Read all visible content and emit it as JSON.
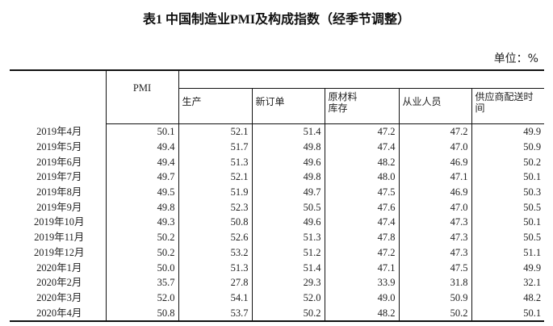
{
  "title": "表1 中国制造业PMI及构成指数（经季节调整）",
  "unit": "单位：%",
  "headers": {
    "pmi": "PMI",
    "cols": [
      "生产",
      "新订单",
      "原材料库存",
      "从业人员",
      "供应商配送时间"
    ],
    "col_lines": [
      [
        "生产"
      ],
      [
        "新订单"
      ],
      [
        "原材料",
        "库存"
      ],
      [
        "从业人员"
      ],
      [
        "供应商配送时",
        "间"
      ]
    ]
  },
  "rows": [
    {
      "month": "2019年4月",
      "values": [
        "50.1",
        "52.1",
        "51.4",
        "47.2",
        "47.2",
        "49.9"
      ]
    },
    {
      "month": "2019年5月",
      "values": [
        "49.4",
        "51.7",
        "49.8",
        "47.4",
        "47.0",
        "50.9"
      ]
    },
    {
      "month": "2019年6月",
      "values": [
        "49.4",
        "51.3",
        "49.6",
        "48.2",
        "46.9",
        "50.2"
      ]
    },
    {
      "month": "2019年7月",
      "values": [
        "49.7",
        "52.1",
        "49.8",
        "48.0",
        "47.1",
        "50.1"
      ]
    },
    {
      "month": "2019年8月",
      "values": [
        "49.5",
        "51.9",
        "49.7",
        "47.5",
        "46.9",
        "50.3"
      ]
    },
    {
      "month": "2019年9月",
      "values": [
        "49.8",
        "52.3",
        "50.5",
        "47.6",
        "47.0",
        "50.5"
      ]
    },
    {
      "month": "2019年10月",
      "values": [
        "49.3",
        "50.8",
        "49.6",
        "47.4",
        "47.3",
        "50.1"
      ]
    },
    {
      "month": "2019年11月",
      "values": [
        "50.2",
        "52.6",
        "51.3",
        "47.8",
        "47.3",
        "50.5"
      ]
    },
    {
      "month": "2019年12月",
      "values": [
        "50.2",
        "53.2",
        "51.2",
        "47.2",
        "47.3",
        "51.1"
      ]
    },
    {
      "month": "2020年1月",
      "values": [
        "50.0",
        "51.3",
        "51.4",
        "47.1",
        "47.5",
        "49.9"
      ]
    },
    {
      "month": "2020年2月",
      "values": [
        "35.7",
        "27.8",
        "29.3",
        "33.9",
        "31.8",
        "32.1"
      ]
    },
    {
      "month": "2020年3月",
      "values": [
        "52.0",
        "54.1",
        "52.0",
        "49.0",
        "50.9",
        "48.2"
      ]
    },
    {
      "month": "2020年4月",
      "values": [
        "50.8",
        "53.7",
        "50.2",
        "48.2",
        "50.2",
        "50.1"
      ]
    }
  ]
}
